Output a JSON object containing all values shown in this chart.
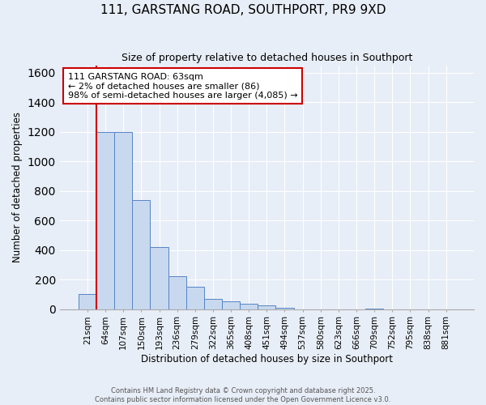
{
  "title": "111, GARSTANG ROAD, SOUTHPORT, PR9 9XD",
  "subtitle": "Size of property relative to detached houses in Southport",
  "xlabel": "Distribution of detached houses by size in Southport",
  "ylabel": "Number of detached properties",
  "categories": [
    "21sqm",
    "64sqm",
    "107sqm",
    "150sqm",
    "193sqm",
    "236sqm",
    "279sqm",
    "322sqm",
    "365sqm",
    "408sqm",
    "451sqm",
    "494sqm",
    "537sqm",
    "580sqm",
    "623sqm",
    "666sqm",
    "709sqm",
    "752sqm",
    "795sqm",
    "838sqm",
    "881sqm"
  ],
  "values": [
    100,
    1200,
    1200,
    740,
    420,
    225,
    150,
    70,
    55,
    35,
    25,
    10,
    0,
    0,
    0,
    0,
    5,
    0,
    0,
    0,
    0
  ],
  "bar_color": "#c8d8ee",
  "bar_edge_color": "#5585c5",
  "background_color": "#e8eef7",
  "grid_color": "#ffffff",
  "annotation_text": "111 GARSTANG ROAD: 63sqm\n← 2% of detached houses are smaller (86)\n98% of semi-detached houses are larger (4,085) →",
  "annotation_box_facecolor": "white",
  "annotation_box_edgecolor": "#cc0000",
  "vline_color": "#cc0000",
  "vline_x_idx": 1,
  "ylim": [
    0,
    1650
  ],
  "yticks": [
    0,
    200,
    400,
    600,
    800,
    1000,
    1200,
    1400,
    1600
  ],
  "footer1": "Contains HM Land Registry data © Crown copyright and database right 2025.",
  "footer2": "Contains public sector information licensed under the Open Government Licence v3.0."
}
